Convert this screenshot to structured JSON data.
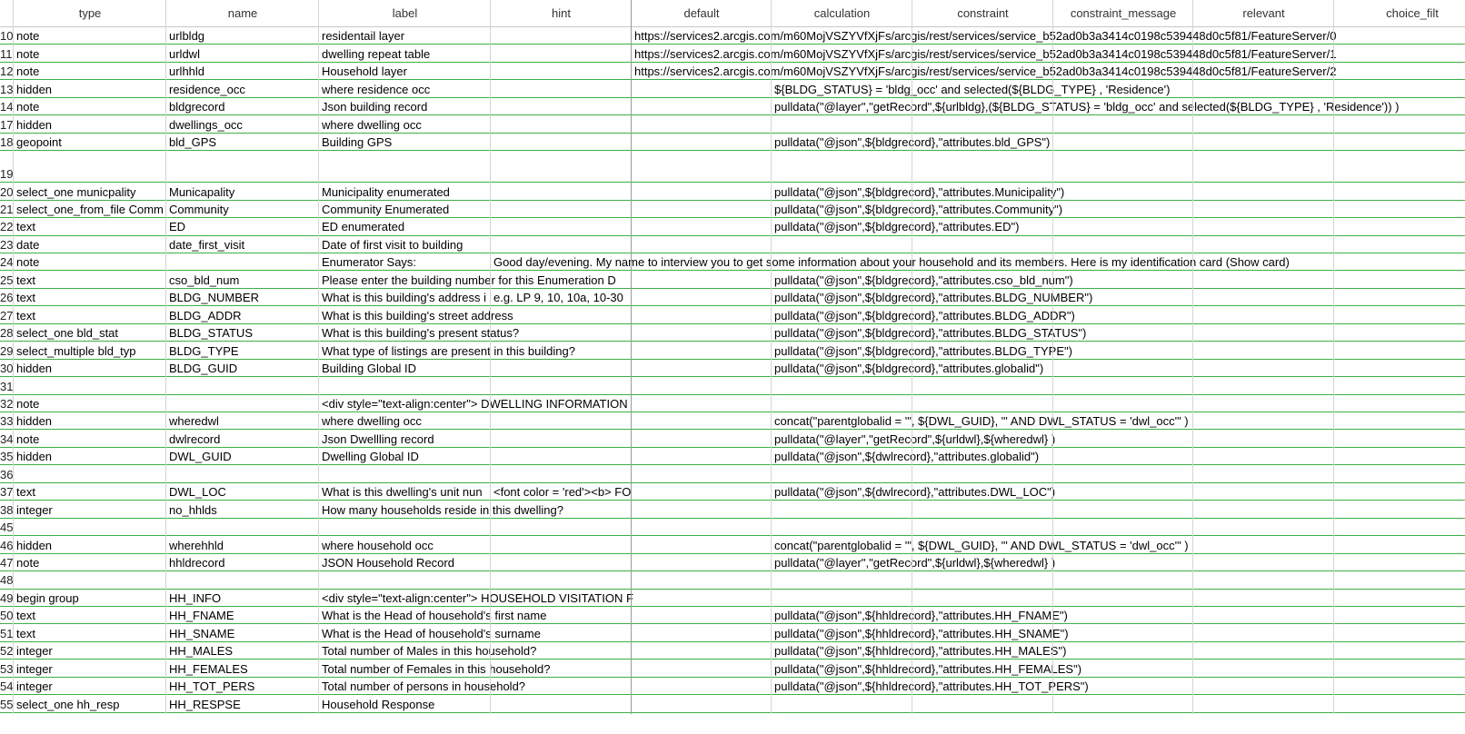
{
  "header": [
    "type",
    "name",
    "label",
    "hint",
    "default",
    "calculation",
    "constraint",
    "constraint_message",
    "relevant",
    "choice_filt"
  ],
  "rows": [
    {
      "num": "10",
      "cells": [
        "note",
        "urlbldg",
        "residentail layer",
        null,
        "https://services2.arcgis.com/m60MojVSZYVfXjFs/arcgis/rest/services/service_b52ad0b3a3414c0198c539448d0c5f81/FeatureServer/0",
        null,
        null,
        null,
        null,
        null
      ]
    },
    {
      "num": "11",
      "cells": [
        "note",
        "urldwl",
        "dwelling repeat table",
        null,
        "https://services2.arcgis.com/m60MojVSZYVfXjFs/arcgis/rest/services/service_b52ad0b3a3414c0198c539448d0c5f81/FeatureServer/1",
        null,
        null,
        null,
        null,
        null
      ]
    },
    {
      "num": "12",
      "cells": [
        "note",
        "urlhhld",
        "Household layer",
        null,
        "https://services2.arcgis.com/m60MojVSZYVfXjFs/arcgis/rest/services/service_b52ad0b3a3414c0198c539448d0c5f81/FeatureServer/2",
        null,
        null,
        null,
        null,
        null
      ]
    },
    {
      "num": "13",
      "cells": [
        "hidden",
        "residence_occ",
        "where residence occ",
        null,
        null,
        "${BLDG_STATUS} = 'bldg_occ' and  selected(${BLDG_TYPE} , 'Residence')",
        null,
        null,
        null,
        null
      ]
    },
    {
      "num": "14",
      "cells": [
        "note",
        "bldgrecord",
        "Json building record",
        null,
        null,
        "pulldata(\"@layer\",\"getRecord\",${urlbldg},(${BLDG_STATUS} = 'bldg_occ' and  selected(${BLDG_TYPE} , 'Residence')) )",
        null,
        null,
        null,
        null
      ]
    },
    {
      "num": "17",
      "cells": [
        "hidden",
        "dwellings_occ",
        "where dwelling occ",
        null,
        null,
        null,
        null,
        null,
        null,
        null
      ]
    },
    {
      "num": "18",
      "cells": [
        "geopoint",
        "bld_GPS",
        "Building GPS",
        null,
        null,
        "pulldata(\"@json\",${bldgrecord},\"attributes.bld_GPS\")",
        null,
        null,
        null,
        null
      ]
    },
    {
      "num": "19",
      "cells": [
        null,
        null,
        null,
        null,
        null,
        null,
        null,
        null,
        null,
        null
      ]
    },
    {
      "num": "20",
      "cells": [
        "select_one municpality",
        "Municapality",
        "Municipality enumerated",
        null,
        null,
        "pulldata(\"@json\",${bldgrecord},\"attributes.Municipality\")",
        null,
        null,
        null,
        null
      ]
    },
    {
      "num": "21",
      "cells": [
        "select_one_from_file Comm",
        "Community",
        "Community Enumerated",
        null,
        null,
        "pulldata(\"@json\",${bldgrecord},\"attributes.Community\")",
        null,
        null,
        null,
        null
      ]
    },
    {
      "num": "22",
      "cells": [
        "text",
        "ED",
        "ED enumerated",
        null,
        null,
        "pulldata(\"@json\",${bldgrecord},\"attributes.ED\")",
        null,
        null,
        null,
        null
      ]
    },
    {
      "num": "23",
      "cells": [
        "date",
        "date_first_visit",
        "Date of first visit to building",
        null,
        null,
        null,
        null,
        null,
        null,
        null
      ]
    },
    {
      "num": "24",
      "cells": [
        "note",
        null,
        "Enumerator Says:",
        "Good day/evening. My name to interview you to get some information about your household and its members. Here is my identification card (Show card)",
        null,
        null,
        null,
        null,
        null,
        null
      ]
    },
    {
      "num": "25",
      "cells": [
        "text",
        "cso_bld_num",
        "Please enter the building number for this Enumeration D",
        null,
        null,
        "pulldata(\"@json\",${bldgrecord},\"attributes.cso_bld_num\")",
        null,
        null,
        null,
        null
      ]
    },
    {
      "num": "26",
      "cells": [
        "text",
        "BLDG_NUMBER",
        "What is this building's address i",
        "e.g. LP 9, 10, 10a, 10-30",
        null,
        "pulldata(\"@json\",${bldgrecord},\"attributes.BLDG_NUMBER\")",
        null,
        null,
        null,
        null
      ]
    },
    {
      "num": "27",
      "cells": [
        "text",
        "BLDG_ADDR",
        "What is this building's street address",
        null,
        null,
        "pulldata(\"@json\",${bldgrecord},\"attributes.BLDG_ADDR\")",
        null,
        null,
        null,
        null
      ]
    },
    {
      "num": "28",
      "cells": [
        "select_one bld_stat",
        "BLDG_STATUS",
        "What is this building's present  status?",
        null,
        null,
        "pulldata(\"@json\",${bldgrecord},\"attributes.BLDG_STATUS\")",
        null,
        null,
        null,
        null
      ]
    },
    {
      "num": "29",
      "cells": [
        "select_multiple bld_typ",
        "BLDG_TYPE",
        "What type of listings are present in this building?",
        null,
        null,
        "pulldata(\"@json\",${bldgrecord},\"attributes.BLDG_TYPE\")",
        null,
        null,
        null,
        null
      ]
    },
    {
      "num": "30",
      "cells": [
        "hidden",
        "BLDG_GUID",
        "Building Global ID",
        null,
        null,
        "pulldata(\"@json\",${bldgrecord},\"attributes.globalid\")",
        null,
        null,
        null,
        null
      ]
    },
    {
      "num": "31",
      "cells": [
        null,
        null,
        null,
        null,
        null,
        null,
        null,
        null,
        null,
        null
      ]
    },
    {
      "num": "32",
      "cells": [
        "note",
        null,
        "<div style=\"text-align:center\">  DWELLING INFORMATION",
        null,
        null,
        null,
        null,
        null,
        null,
        null
      ]
    },
    {
      "num": "33",
      "cells": [
        "hidden",
        "wheredwl",
        "where dwelling occ",
        null,
        null,
        "concat(\"parentglobalid = '\", ${DWL_GUID}, \"' AND DWL_STATUS = 'dwl_occ'\" )",
        null,
        null,
        null,
        null
      ]
    },
    {
      "num": "34",
      "cells": [
        "note",
        "dwlrecord",
        "Json Dwellling record",
        null,
        null,
        "pulldata(\"@layer\",\"getRecord\",${urldwl},${wheredwl} )",
        null,
        null,
        null,
        null
      ]
    },
    {
      "num": "35",
      "cells": [
        "hidden",
        "DWL_GUID",
        "Dwelling Global ID",
        null,
        null,
        "pulldata(\"@json\",${dwlrecord},\"attributes.globalid\")",
        null,
        null,
        null,
        null
      ]
    },
    {
      "num": "36",
      "cells": [
        null,
        null,
        null,
        null,
        null,
        null,
        null,
        null,
        null,
        null
      ]
    },
    {
      "num": "37",
      "cells": [
        "text",
        "DWL_LOC",
        "What is this dwelling's unit nun",
        "<font color = 'red'><b> FO",
        null,
        "pulldata(\"@json\",${dwlrecord},\"attributes.DWL_LOC\")",
        null,
        null,
        null,
        null
      ]
    },
    {
      "num": "38",
      "cells": [
        "integer",
        "no_hhlds",
        "How many households reside in this dwelling?",
        null,
        null,
        null,
        null,
        null,
        null,
        null
      ]
    },
    {
      "num": "45",
      "cells": [
        null,
        null,
        null,
        null,
        null,
        null,
        null,
        null,
        null,
        null
      ]
    },
    {
      "num": "46",
      "cells": [
        "hidden",
        "wherehhld",
        "where household occ",
        null,
        null,
        "concat(\"parentglobalid = '\", ${DWL_GUID}, \"' AND DWL_STATUS = 'dwl_occ'\" )",
        null,
        null,
        null,
        null
      ]
    },
    {
      "num": "47",
      "cells": [
        "note",
        "hhldrecord",
        "JSON Household Record",
        null,
        null,
        "pulldata(\"@layer\",\"getRecord\",${urldwl},${wheredwl} )",
        null,
        null,
        null,
        null
      ]
    },
    {
      "num": "48",
      "cells": [
        null,
        null,
        null,
        null,
        null,
        null,
        null,
        null,
        null,
        null
      ]
    },
    {
      "num": "49",
      "cells": [
        "begin group",
        "HH_INFO",
        "<div style=\"text-align:center\"> HOUSEHOLD VISITATION F",
        null,
        null,
        null,
        null,
        null,
        null,
        null
      ]
    },
    {
      "num": "50",
      "cells": [
        "text",
        "HH_FNAME",
        "What is the Head of household's first name",
        null,
        null,
        "pulldata(\"@json\",${hhldrecord},\"attributes.HH_FNAME\")",
        null,
        null,
        null,
        null
      ]
    },
    {
      "num": "51",
      "cells": [
        "text",
        "HH_SNAME",
        "What is the Head of household's  surname",
        null,
        null,
        "pulldata(\"@json\",${hhldrecord},\"attributes.HH_SNAME\")",
        null,
        null,
        null,
        null
      ]
    },
    {
      "num": "52",
      "cells": [
        "integer",
        "HH_MALES",
        "Total number of Males in this household?",
        null,
        null,
        "pulldata(\"@json\",${hhldrecord},\"attributes.HH_MALES\")",
        null,
        null,
        null,
        null
      ]
    },
    {
      "num": "53",
      "cells": [
        "integer",
        "HH_FEMALES",
        "Total number of Females in this household?",
        null,
        null,
        "pulldata(\"@json\",${hhldrecord},\"attributes.HH_FEMALES\")",
        null,
        null,
        null,
        null
      ]
    },
    {
      "num": "54",
      "cells": [
        "integer",
        "HH_TOT_PERS",
        "Total number of persons in household?",
        null,
        null,
        "pulldata(\"@json\",${hhldrecord},\"attributes.HH_TOT_PERS\")",
        null,
        null,
        null,
        null
      ]
    },
    {
      "num": "55",
      "cells": [
        "select_one hh_resp",
        "HH_RESPSE",
        "Household Response",
        null,
        null,
        null,
        null,
        null,
        null,
        null
      ]
    }
  ]
}
